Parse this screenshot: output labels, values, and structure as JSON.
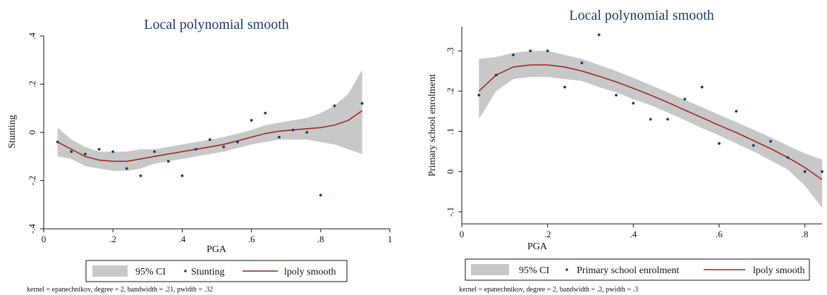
{
  "chart_data": [
    {
      "type": "scatter",
      "title": "Local polynomial smooth",
      "xlabel": "PGA",
      "ylabel": "Stunting",
      "xlim": [
        0,
        1
      ],
      "ylim": [
        -0.4,
        0.4
      ],
      "xticks": [
        {
          "v": 0,
          "label": "0"
        },
        {
          "v": 0.2,
          "label": ".2"
        },
        {
          "v": 0.4,
          "label": ".4"
        },
        {
          "v": 0.6,
          "label": ".6"
        },
        {
          "v": 0.8,
          "label": ".8"
        },
        {
          "v": 1,
          "label": "1"
        }
      ],
      "yticks": [
        {
          "v": -0.4,
          "label": "-.4"
        },
        {
          "v": -0.2,
          "label": "-.2"
        },
        {
          "v": 0,
          "label": "0"
        },
        {
          "v": 0.2,
          "label": ".2"
        },
        {
          "v": 0.4,
          "label": ".4"
        }
      ],
      "series": [
        {
          "name": "Stunting",
          "kind": "points",
          "x": [
            0.04,
            0.08,
            0.12,
            0.16,
            0.2,
            0.24,
            0.28,
            0.32,
            0.36,
            0.4,
            0.44,
            0.48,
            0.52,
            0.56,
            0.6,
            0.64,
            0.68,
            0.72,
            0.76,
            0.8,
            0.84,
            0.92
          ],
          "y": [
            -0.04,
            -0.08,
            -0.09,
            -0.07,
            -0.08,
            -0.15,
            -0.18,
            -0.08,
            -0.12,
            -0.18,
            -0.07,
            -0.03,
            -0.06,
            -0.04,
            0.05,
            0.08,
            -0.02,
            0.01,
            0.0,
            -0.26,
            0.11,
            0.12
          ]
        },
        {
          "name": "lpoly smooth",
          "kind": "line",
          "x": [
            0.04,
            0.08,
            0.12,
            0.16,
            0.2,
            0.24,
            0.28,
            0.32,
            0.36,
            0.4,
            0.44,
            0.48,
            0.52,
            0.56,
            0.6,
            0.64,
            0.68,
            0.72,
            0.76,
            0.8,
            0.84,
            0.88,
            0.92
          ],
          "y": [
            -0.04,
            -0.07,
            -0.1,
            -0.115,
            -0.12,
            -0.12,
            -0.11,
            -0.1,
            -0.09,
            -0.08,
            -0.07,
            -0.06,
            -0.05,
            -0.035,
            -0.02,
            -0.005,
            0.005,
            0.01,
            0.015,
            0.02,
            0.03,
            0.05,
            0.09
          ]
        },
        {
          "name": "95% CI",
          "kind": "band",
          "x": [
            0.04,
            0.08,
            0.12,
            0.16,
            0.2,
            0.24,
            0.28,
            0.32,
            0.36,
            0.4,
            0.44,
            0.48,
            0.52,
            0.56,
            0.6,
            0.64,
            0.68,
            0.72,
            0.76,
            0.8,
            0.84,
            0.88,
            0.92
          ],
          "lower": [
            -0.1,
            -0.11,
            -0.14,
            -0.15,
            -0.16,
            -0.16,
            -0.15,
            -0.13,
            -0.12,
            -0.11,
            -0.1,
            -0.09,
            -0.08,
            -0.065,
            -0.05,
            -0.04,
            -0.03,
            -0.03,
            -0.03,
            -0.04,
            -0.05,
            -0.07,
            -0.09
          ],
          "upper": [
            0.02,
            -0.03,
            -0.06,
            -0.08,
            -0.08,
            -0.08,
            -0.07,
            -0.07,
            -0.06,
            -0.05,
            -0.04,
            -0.03,
            -0.02,
            -0.005,
            0.01,
            0.03,
            0.04,
            0.05,
            0.06,
            0.08,
            0.11,
            0.16,
            0.26
          ]
        }
      ],
      "legend": {
        "position": "bottom",
        "items": [
          "95% CI",
          "Stunting",
          "lpoly smooth"
        ]
      },
      "note": "kernel = epanechnikov, degree = 2, bandwidth = .21, pwidth = .32",
      "grid": false,
      "colors": {
        "band": "#c8c8c8",
        "line": "#9b1c1c",
        "points": "#1a3a6b",
        "title": "#1f3a66"
      }
    },
    {
      "type": "scatter",
      "title": "Local polynomial smooth",
      "xlabel": "PGA",
      "ylabel": "Primary school enrolment",
      "xlim": [
        0,
        0.84
      ],
      "ylim": [
        -0.13,
        0.36
      ],
      "xticks": [
        {
          "v": 0,
          "label": "0"
        },
        {
          "v": 0.2,
          "label": ".2"
        },
        {
          "v": 0.4,
          "label": ".4"
        },
        {
          "v": 0.6,
          "label": ".6"
        },
        {
          "v": 0.8,
          "label": ".8"
        }
      ],
      "yticks": [
        {
          "v": -0.1,
          "label": "-.1"
        },
        {
          "v": 0,
          "label": "0"
        },
        {
          "v": 0.1,
          "label": ".1"
        },
        {
          "v": 0.2,
          "label": ".2"
        },
        {
          "v": 0.3,
          "label": ".3"
        }
      ],
      "series": [
        {
          "name": "Primary school enrolment",
          "kind": "points",
          "x": [
            0.04,
            0.08,
            0.12,
            0.16,
            0.2,
            0.24,
            0.28,
            0.32,
            0.36,
            0.4,
            0.44,
            0.48,
            0.52,
            0.56,
            0.6,
            0.64,
            0.68,
            0.72,
            0.76,
            0.8,
            0.84
          ],
          "y": [
            0.19,
            0.24,
            0.29,
            0.3,
            0.3,
            0.21,
            0.27,
            0.34,
            0.19,
            0.17,
            0.13,
            0.13,
            0.18,
            0.21,
            0.07,
            0.15,
            0.065,
            0.075,
            0.035,
            0.0,
            0.0
          ]
        },
        {
          "name": "lpoly smooth",
          "kind": "line",
          "x": [
            0.04,
            0.08,
            0.12,
            0.16,
            0.2,
            0.24,
            0.28,
            0.32,
            0.36,
            0.4,
            0.44,
            0.48,
            0.52,
            0.56,
            0.6,
            0.64,
            0.68,
            0.72,
            0.76,
            0.8,
            0.84
          ],
          "y": [
            0.2,
            0.24,
            0.26,
            0.265,
            0.265,
            0.26,
            0.25,
            0.237,
            0.223,
            0.207,
            0.19,
            0.172,
            0.153,
            0.134,
            0.115,
            0.097,
            0.077,
            0.057,
            0.035,
            0.01,
            -0.02
          ]
        },
        {
          "name": "95% CI",
          "kind": "band",
          "x": [
            0.04,
            0.08,
            0.12,
            0.16,
            0.2,
            0.24,
            0.28,
            0.32,
            0.36,
            0.4,
            0.44,
            0.48,
            0.52,
            0.56,
            0.6,
            0.64,
            0.68,
            0.72,
            0.76,
            0.8,
            0.84
          ],
          "lower": [
            0.13,
            0.2,
            0.23,
            0.235,
            0.235,
            0.23,
            0.225,
            0.21,
            0.197,
            0.18,
            0.165,
            0.147,
            0.128,
            0.108,
            0.09,
            0.07,
            0.05,
            0.028,
            0.005,
            -0.035,
            -0.09
          ],
          "upper": [
            0.28,
            0.285,
            0.295,
            0.3,
            0.3,
            0.29,
            0.28,
            0.265,
            0.25,
            0.233,
            0.215,
            0.197,
            0.178,
            0.16,
            0.141,
            0.123,
            0.104,
            0.085,
            0.065,
            0.045,
            0.03
          ]
        }
      ],
      "legend": {
        "position": "bottom",
        "items": [
          "95% CI",
          "Primary school enrolment",
          "lpoly smooth"
        ]
      },
      "note": "kernel = epanechnikov, degree = 2, bandwidth = .2, pwidth = .3",
      "grid": false,
      "colors": {
        "band": "#c8c8c8",
        "line": "#9b1c1c",
        "points": "#1a3a6b",
        "title": "#1f3a66"
      }
    }
  ]
}
